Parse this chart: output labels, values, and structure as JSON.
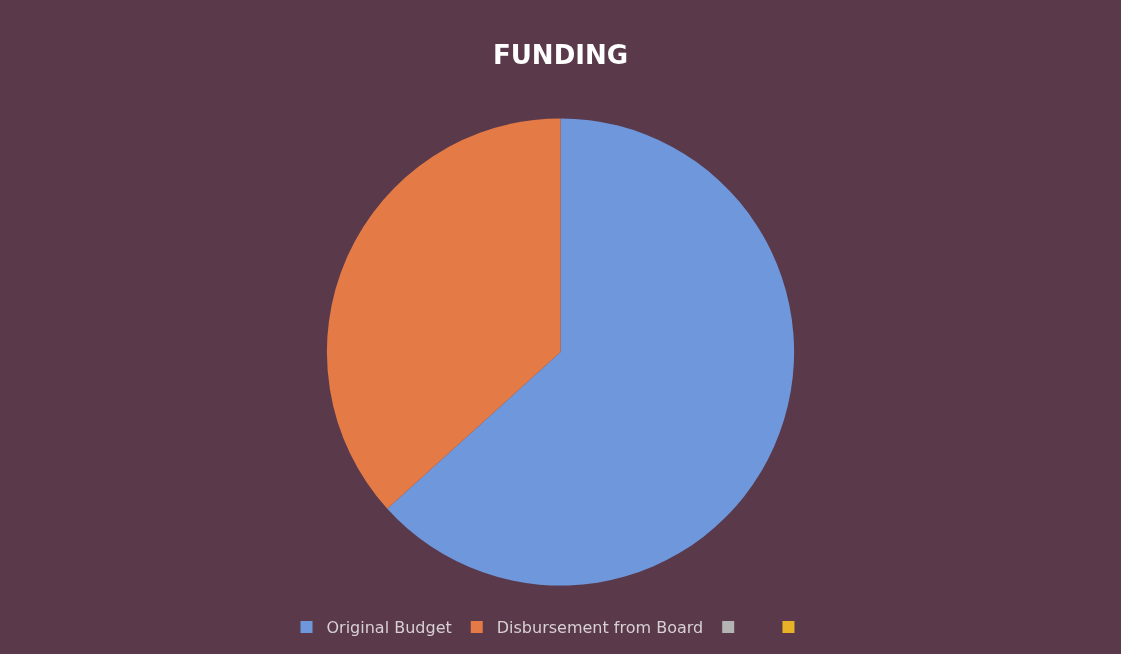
{
  "chart_data": {
    "type": "pie",
    "title": "FUNDING",
    "categories": [
      "Original Budget",
      "Disbursement from Board",
      null,
      null
    ],
    "values": [
      63.3,
      36.7,
      0,
      0
    ],
    "colors": [
      "#6f97dc",
      "#e47a45",
      "#b4b4b4",
      "#e8b228"
    ],
    "legend": "bottom"
  }
}
